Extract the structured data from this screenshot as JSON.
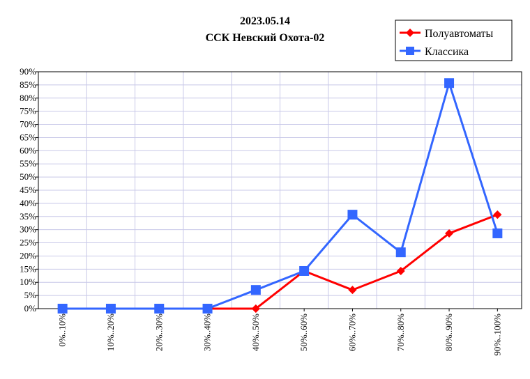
{
  "chart_data": {
    "type": "line",
    "title": "2023.05.14",
    "subtitle": "ССК Невский Охота-02",
    "categories": [
      "0%..10%",
      "10%..20%",
      "20%..30%",
      "30%..40%",
      "40%..50%",
      "50%..60%",
      "60%..70%",
      "70%..80%",
      "80%..90%",
      "90%..100%"
    ],
    "ylim": [
      0,
      90
    ],
    "ytick_step": 5,
    "ytick_labels": [
      "0%",
      "5%",
      "10%",
      "15%",
      "20%",
      "25%",
      "30%",
      "35%",
      "40%",
      "45%",
      "50%",
      "55%",
      "60%",
      "65%",
      "70%",
      "75%",
      "80%",
      "85%",
      "90%"
    ],
    "grid": true,
    "legend_position": "top-right",
    "series": [
      {
        "name": "Полуавтоматы",
        "color": "#ff0000",
        "marker": "diamond",
        "values": [
          0,
          0,
          0,
          0,
          0,
          14.3,
          7.1,
          14.3,
          28.6,
          35.7
        ]
      },
      {
        "name": "Классика",
        "color": "#3366ff",
        "marker": "square",
        "values": [
          0,
          0,
          0,
          0,
          7.1,
          14.3,
          35.7,
          21.4,
          85.7,
          28.6
        ]
      }
    ]
  }
}
